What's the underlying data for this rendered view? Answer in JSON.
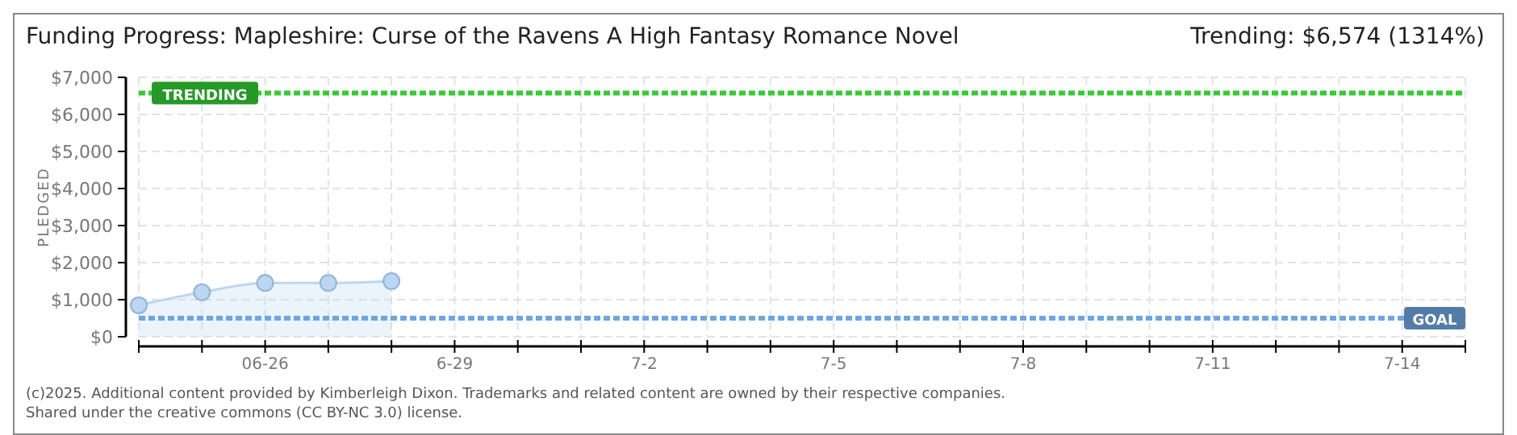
{
  "chart_data": {
    "type": "area",
    "title": "Funding Progress: Mapleshire: Curse of the Ravens A High Fantasy Romance Novel",
    "subtitle": "Trending: $6,574 (1314%)",
    "ylabel": "PLEDGED",
    "x": [
      "2025-06-24",
      "2025-06-25",
      "2025-06-26",
      "2025-06-27",
      "2025-06-28"
    ],
    "series": [
      {
        "color": "#bcd6f2",
        "values": [
          850,
          1200,
          1450,
          1450,
          1500
        ]
      }
    ],
    "xlim": [
      "2025-06-24",
      "2025-07-15"
    ],
    "xticks": [
      {
        "value": "2025-06-24",
        "label": null
      },
      {
        "value": "2025-06-25",
        "label": null
      },
      {
        "value": "2025-06-26",
        "label": "06-26"
      },
      {
        "value": "2025-06-27",
        "label": null
      },
      {
        "value": "2025-06-28",
        "label": null
      },
      {
        "value": "2025-06-29",
        "label": "6-29"
      },
      {
        "value": "2025-06-30",
        "label": null
      },
      {
        "value": "2025-07-01",
        "label": null
      },
      {
        "value": "2025-07-02",
        "label": "7-2"
      },
      {
        "value": "2025-07-03",
        "label": null
      },
      {
        "value": "2025-07-04",
        "label": null
      },
      {
        "value": "2025-07-05",
        "label": "7-5"
      },
      {
        "value": "2025-07-06",
        "label": null
      },
      {
        "value": "2025-07-07",
        "label": null
      },
      {
        "value": "2025-07-08",
        "label": "7-8"
      },
      {
        "value": "2025-07-09",
        "label": null
      },
      {
        "value": "2025-07-10",
        "label": null
      },
      {
        "value": "2025-07-11",
        "label": "7-11"
      },
      {
        "value": "2025-07-12",
        "label": null
      },
      {
        "value": "2025-07-13",
        "label": null
      },
      {
        "value": "2025-07-14",
        "label": "7-14"
      },
      {
        "value": "2025-07-15",
        "label": null
      }
    ],
    "ylim": [
      0,
      7000
    ],
    "yticks": [
      {
        "value": 0,
        "label": "$0"
      },
      {
        "value": 1000,
        "label": "$1,000"
      },
      {
        "value": 2000,
        "label": "$2,000"
      },
      {
        "value": 3000,
        "label": "$3,000"
      },
      {
        "value": 4000,
        "label": "$4,000"
      },
      {
        "value": 5000,
        "label": "$5,000"
      },
      {
        "value": 6000,
        "label": "$6,000"
      },
      {
        "value": 7000,
        "label": "$7,000"
      }
    ],
    "grid": true,
    "marker": "circle",
    "ref_lines": [
      {
        "axis": "y",
        "value": 6574,
        "label": "TRENDING",
        "color": "#33cc33",
        "line_style": "dotted"
      },
      {
        "axis": "y",
        "value": 500,
        "label": "GOAL",
        "color": "#6fa6e0",
        "line_style": "dotted"
      }
    ],
    "annotations": [
      "(c)2025. Additional content provided by Kimberleigh Dixon. Trademarks and related content are owned by their respective companies.",
      "Shared under the creative commons (CC BY-NC 3.0) license."
    ]
  }
}
